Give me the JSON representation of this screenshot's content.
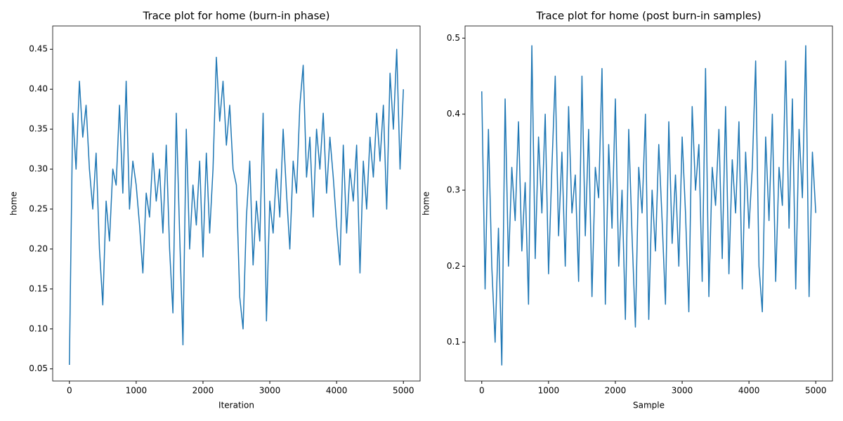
{
  "chart_data": [
    {
      "type": "line",
      "title": "Trace plot for home (burn-in phase)",
      "x_label": "Iteration",
      "y_label": "home",
      "x": [
        0,
        50,
        100,
        150,
        200,
        250,
        300,
        350,
        400,
        450,
        500,
        550,
        600,
        650,
        700,
        750,
        800,
        850,
        900,
        950,
        1000,
        1050,
        1100,
        1150,
        1200,
        1250,
        1300,
        1350,
        1400,
        1450,
        1500,
        1550,
        1600,
        1650,
        1700,
        1750,
        1800,
        1850,
        1900,
        1950,
        2000,
        2050,
        2100,
        2150,
        2200,
        2250,
        2300,
        2350,
        2400,
        2450,
        2500,
        2550,
        2600,
        2650,
        2700,
        2750,
        2800,
        2850,
        2900,
        2950,
        3000,
        3050,
        3100,
        3150,
        3200,
        3250,
        3300,
        3350,
        3400,
        3450,
        3500,
        3550,
        3600,
        3650,
        3700,
        3750,
        3800,
        3850,
        3900,
        3950,
        4000,
        4050,
        4100,
        4150,
        4200,
        4250,
        4300,
        4350,
        4400,
        4450,
        4500,
        4550,
        4600,
        4650,
        4700,
        4750,
        4800,
        4850,
        4900,
        4950,
        5000
      ],
      "values": [
        0.055,
        0.37,
        0.3,
        0.41,
        0.34,
        0.38,
        0.3,
        0.25,
        0.32,
        0.2,
        0.13,
        0.26,
        0.21,
        0.3,
        0.28,
        0.38,
        0.27,
        0.41,
        0.25,
        0.31,
        0.28,
        0.23,
        0.17,
        0.27,
        0.24,
        0.32,
        0.26,
        0.3,
        0.22,
        0.33,
        0.2,
        0.12,
        0.37,
        0.22,
        0.08,
        0.35,
        0.2,
        0.28,
        0.23,
        0.31,
        0.19,
        0.32,
        0.22,
        0.3,
        0.44,
        0.36,
        0.41,
        0.33,
        0.38,
        0.3,
        0.28,
        0.14,
        0.1,
        0.24,
        0.31,
        0.18,
        0.26,
        0.21,
        0.37,
        0.11,
        0.26,
        0.22,
        0.3,
        0.24,
        0.35,
        0.27,
        0.2,
        0.31,
        0.27,
        0.38,
        0.43,
        0.29,
        0.34,
        0.24,
        0.35,
        0.3,
        0.37,
        0.27,
        0.34,
        0.29,
        0.23,
        0.18,
        0.33,
        0.22,
        0.3,
        0.26,
        0.33,
        0.17,
        0.31,
        0.25,
        0.34,
        0.29,
        0.37,
        0.31,
        0.38,
        0.25,
        0.42,
        0.35,
        0.45,
        0.3,
        0.4
      ],
      "color": "#1f77b4",
      "xlim": [
        -250,
        5250
      ],
      "xticks": [
        0,
        1000,
        2000,
        3000,
        4000,
        5000
      ],
      "ylim": [
        0.0348,
        0.4792
      ],
      "yticks": [
        0.05,
        {
          "value": 0.1,
          "label": "0.10"
        },
        0.15,
        {
          "value": 0.2,
          "label": "0.20"
        },
        0.25,
        {
          "value": 0.3,
          "label": "0.30"
        },
        0.35,
        {
          "value": 0.4,
          "label": "0.40"
        },
        0.45
      ]
    },
    {
      "type": "line",
      "title": "Trace plot for home (post burn-in samples)",
      "x_label": "Sample",
      "y_label": "home",
      "x": [
        0,
        50,
        100,
        150,
        200,
        250,
        300,
        350,
        400,
        450,
        500,
        550,
        600,
        650,
        700,
        750,
        800,
        850,
        900,
        950,
        1000,
        1050,
        1100,
        1150,
        1200,
        1250,
        1300,
        1350,
        1400,
        1450,
        1500,
        1550,
        1600,
        1650,
        1700,
        1750,
        1800,
        1850,
        1900,
        1950,
        2000,
        2050,
        2100,
        2150,
        2200,
        2250,
        2300,
        2350,
        2400,
        2450,
        2500,
        2550,
        2600,
        2650,
        2700,
        2750,
        2800,
        2850,
        2900,
        2950,
        3000,
        3050,
        3100,
        3150,
        3200,
        3250,
        3300,
        3350,
        3400,
        3450,
        3500,
        3550,
        3600,
        3650,
        3700,
        3750,
        3800,
        3850,
        3900,
        3950,
        4000,
        4050,
        4100,
        4150,
        4200,
        4250,
        4300,
        4350,
        4400,
        4450,
        4500,
        4550,
        4600,
        4650,
        4700,
        4750,
        4800,
        4850,
        4900,
        4950,
        5000
      ],
      "values": [
        0.43,
        0.17,
        0.38,
        0.2,
        0.1,
        0.25,
        0.07,
        0.42,
        0.2,
        0.33,
        0.26,
        0.39,
        0.22,
        0.31,
        0.15,
        0.49,
        0.21,
        0.37,
        0.27,
        0.4,
        0.19,
        0.33,
        0.45,
        0.24,
        0.35,
        0.2,
        0.41,
        0.27,
        0.32,
        0.18,
        0.45,
        0.24,
        0.38,
        0.16,
        0.33,
        0.29,
        0.46,
        0.15,
        0.36,
        0.25,
        0.42,
        0.2,
        0.3,
        0.13,
        0.38,
        0.24,
        0.12,
        0.33,
        0.27,
        0.4,
        0.13,
        0.3,
        0.22,
        0.36,
        0.26,
        0.15,
        0.39,
        0.23,
        0.32,
        0.2,
        0.37,
        0.27,
        0.14,
        0.41,
        0.3,
        0.36,
        0.18,
        0.46,
        0.16,
        0.33,
        0.28,
        0.38,
        0.21,
        0.41,
        0.19,
        0.34,
        0.27,
        0.39,
        0.17,
        0.35,
        0.25,
        0.33,
        0.47,
        0.2,
        0.14,
        0.37,
        0.26,
        0.4,
        0.18,
        0.33,
        0.28,
        0.47,
        0.25,
        0.42,
        0.17,
        0.38,
        0.29,
        0.49,
        0.16,
        0.35,
        0.27
      ],
      "color": "#1f77b4",
      "xlim": [
        -250,
        5250
      ],
      "xticks": [
        0,
        1000,
        2000,
        3000,
        4000,
        5000
      ],
      "ylim": [
        0.049,
        0.516
      ],
      "yticks": [
        0.1,
        0.2,
        0.3,
        0.4,
        0.5
      ]
    }
  ]
}
